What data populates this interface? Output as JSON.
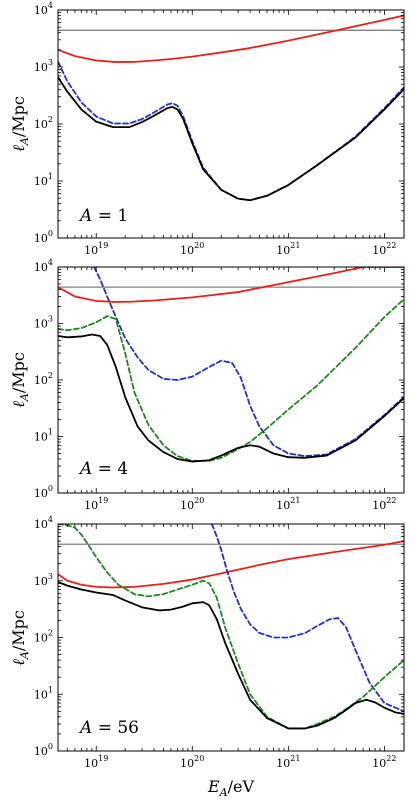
{
  "chart_data": [
    {
      "type": "line",
      "panel_label": "A = 1",
      "panel_label_parts": [
        "A",
        "= 1"
      ],
      "xscale": "log",
      "yscale": "log",
      "xlim": [
        4e+18,
        1.6e+22
      ],
      "ylim": [
        1,
        10000
      ],
      "xticks": [
        "10^19",
        "10^20",
        "10^21",
        "10^22"
      ],
      "yticks": [
        "10^0",
        "10^1",
        "10^2",
        "10^3",
        "10^4"
      ],
      "ylabel": "ℓ_A/Mpc",
      "series": [
        {
          "color": "#808080",
          "style": "solid",
          "x": [
            4e+18,
            1.6e+22
          ],
          "y": [
            4400,
            4400
          ]
        },
        {
          "color": "#e8211d",
          "style": "solid",
          "x": [
            4e+18,
            6e+18,
            1e+19,
            1.6e+19,
            2.5e+19,
            4e+19,
            6e+19,
            1e+20,
            2e+20,
            4e+20,
            1e+21,
            3e+21,
            1e+22,
            1.6e+22
          ],
          "y": [
            2000,
            1550,
            1300,
            1220,
            1230,
            1300,
            1380,
            1520,
            1800,
            2150,
            2900,
            4300,
            6700,
            8000
          ]
        },
        {
          "color": "#1f2fd1",
          "style": "dashed",
          "x": [
            4e+18,
            5e+18,
            7e+18,
            1e+19,
            1.5e+19,
            2.2e+19,
            3e+19,
            4e+19,
            5.5e+19,
            6.2e+19,
            7e+19,
            8e+19,
            1e+20,
            1.3e+20,
            2e+20,
            3e+20,
            4e+20,
            6e+20,
            1e+21,
            2e+21,
            5e+21,
            1e+22,
            1.6e+22
          ],
          "y": [
            1250,
            560,
            240,
            135,
            102,
            102,
            122,
            160,
            220,
            232,
            210,
            140,
            50,
            17,
            7,
            4.9,
            4.6,
            5.5,
            8.5,
            19,
            60,
            190,
            440
          ]
        },
        {
          "color": "#000000",
          "style": "solid",
          "x": [
            4e+18,
            5e+18,
            7e+18,
            1e+19,
            1.5e+19,
            2.2e+19,
            3e+19,
            4e+19,
            5.5e+19,
            6.2e+19,
            7e+19,
            8e+19,
            1e+20,
            1.3e+20,
            2e+20,
            3e+20,
            4e+20,
            6e+20,
            1e+21,
            2e+21,
            5e+21,
            1e+22,
            1.6e+22
          ],
          "y": [
            660,
            370,
            180,
            110,
            88,
            88,
            108,
            140,
            190,
            200,
            180,
            125,
            46,
            16,
            7,
            4.9,
            4.6,
            5.5,
            8.5,
            19,
            58,
            180,
            410
          ]
        }
      ]
    },
    {
      "type": "line",
      "panel_label": "A = 4",
      "panel_label_parts": [
        "A",
        "= 4"
      ],
      "xscale": "log",
      "yscale": "log",
      "xlim": [
        4e+18,
        1.6e+22
      ],
      "ylim": [
        1,
        10000
      ],
      "xticks": [
        "10^19",
        "10^20",
        "10^21",
        "10^22"
      ],
      "yticks": [
        "10^0",
        "10^1",
        "10^2",
        "10^3",
        "10^4"
      ],
      "ylabel": "ℓ_A/Mpc",
      "series": [
        {
          "color": "#808080",
          "style": "solid",
          "x": [
            4e+18,
            1.6e+22
          ],
          "y": [
            4400,
            4400
          ]
        },
        {
          "color": "#e8211d",
          "style": "solid",
          "x": [
            4e+18,
            6e+18,
            1e+19,
            1.6e+19,
            2.5e+19,
            4e+19,
            1e+20,
            3e+20,
            1e+21,
            3e+21,
            6e+21,
            1.6e+22
          ],
          "y": [
            4400,
            3000,
            2500,
            2400,
            2450,
            2550,
            2900,
            3600,
            5400,
            7800,
            10000,
            10000
          ]
        },
        {
          "color": "#1f2fd1",
          "style": "dashed",
          "x": [
            9.5e+18,
            1.1e+19,
            1.3e+19,
            1.6e+19,
            2e+19,
            2.7e+19,
            3.5e+19,
            5e+19,
            7e+19,
            1e+20,
            1.5e+20,
            2e+20,
            2.6e+20,
            3.2e+20,
            4e+20,
            5e+20,
            7e+20,
            1e+21,
            1.5e+21,
            2.5e+21,
            5e+21,
            1e+22,
            1.6e+22
          ],
          "y": [
            10000,
            6000,
            3000,
            1300,
            550,
            250,
            150,
            105,
            100,
            115,
            170,
            220,
            200,
            110,
            35,
            15,
            7,
            5,
            4.5,
            4.8,
            9,
            24,
            50
          ]
        },
        {
          "color": "#1a8a1a",
          "style": "dashed",
          "x": [
            4e+18,
            5e+18,
            7e+18,
            1e+19,
            1.3e+19,
            1.6e+19,
            2e+19,
            2.5e+19,
            3.5e+19,
            5e+19,
            7e+19,
            1e+20,
            1.5e+20,
            2e+20,
            3e+20,
            4e+20,
            6e+20,
            1e+21,
            2e+21,
            5e+21,
            1e+22,
            1.6e+22
          ],
          "y": [
            800,
            760,
            830,
            1050,
            1350,
            1200,
            300,
            60,
            16,
            7,
            4.5,
            3.7,
            3.7,
            4.2,
            6,
            8,
            14,
            30,
            80,
            370,
            1300,
            2700
          ]
        },
        {
          "color": "#000000",
          "style": "solid",
          "x": [
            4e+18,
            5e+18,
            7e+18,
            9e+18,
            1.1e+19,
            1.3e+19,
            1.6e+19,
            2e+19,
            2.7e+19,
            3.5e+19,
            5e+19,
            7e+19,
            1e+20,
            1.5e+20,
            2e+20,
            3e+20,
            4e+20,
            5e+20,
            7e+20,
            1e+21,
            1.5e+21,
            2.5e+21,
            5e+21,
            1e+22,
            1.6e+22
          ],
          "y": [
            600,
            570,
            590,
            640,
            600,
            420,
            170,
            50,
            15,
            8.5,
            5.3,
            4,
            3.6,
            3.8,
            4.6,
            6.3,
            7,
            6.6,
            5,
            4.3,
            4.2,
            4.6,
            8.5,
            23,
            48
          ]
        }
      ]
    },
    {
      "type": "line",
      "panel_label": "A = 56",
      "panel_label_parts": [
        "A",
        "= 56"
      ],
      "xscale": "log",
      "yscale": "log",
      "xlim": [
        4e+18,
        1.6e+22
      ],
      "ylim": [
        1,
        10000
      ],
      "xticks": [
        "10^19",
        "10^20",
        "10^21",
        "10^22"
      ],
      "yticks": [
        "10^0",
        "10^1",
        "10^2",
        "10^3",
        "10^4"
      ],
      "ylabel": "ℓ_A/Mpc",
      "xlabel": "E_A/eV",
      "series": [
        {
          "color": "#808080",
          "style": "solid",
          "x": [
            4e+18,
            1.6e+22
          ],
          "y": [
            4400,
            4400
          ]
        },
        {
          "color": "#e8211d",
          "style": "solid",
          "x": [
            4e+18,
            5e+18,
            7e+18,
            1e+19,
            1.5e+19,
            2.5e+19,
            5e+19,
            1e+20,
            2e+20,
            5e+20,
            1e+21,
            3e+21,
            1e+22,
            1.6e+22
          ],
          "y": [
            1300,
            1000,
            850,
            780,
            760,
            780,
            880,
            1050,
            1350,
            1900,
            2400,
            3200,
            4300,
            5000
          ]
        },
        {
          "color": "#1f2fd1",
          "style": "dashed",
          "x": [
            1.6e+20,
            1.8e+20,
            2e+20,
            2.3e+20,
            2.7e+20,
            3.2e+20,
            4e+20,
            5e+20,
            7e+20,
            1e+21,
            1.5e+21,
            2e+21,
            2.7e+21,
            3.3e+21,
            4e+21,
            5e+21,
            7e+21,
            1e+22,
            1.6e+22
          ],
          "y": [
            10000,
            6000,
            3500,
            1500,
            650,
            320,
            170,
            120,
            100,
            100,
            120,
            160,
            210,
            220,
            150,
            60,
            16,
            7,
            5
          ]
        },
        {
          "color": "#1a8a1a",
          "style": "dashed",
          "x": [
            4e+18,
            5e+18,
            6e+18,
            7e+18,
            8.5e+18,
            1e+19,
            1.3e+19,
            1.7e+19,
            2.5e+19,
            3.5e+19,
            5e+19,
            7e+19,
            1e+20,
            1.3e+20,
            1.5e+20,
            1.8e+20,
            2.2e+20,
            3e+20,
            4e+20,
            6e+20,
            1e+21,
            1.5e+21,
            2e+21,
            3e+21,
            4e+21,
            6e+21,
            1e+22,
            1.6e+22
          ],
          "y": [
            10000,
            9500,
            8600,
            6500,
            4000,
            2600,
            1400,
            850,
            580,
            530,
            580,
            700,
            850,
            1000,
            900,
            500,
            150,
            35,
            10,
            4,
            2.5,
            2.5,
            3,
            4,
            5.5,
            9,
            20,
            40
          ]
        },
        {
          "color": "#000000",
          "style": "solid",
          "x": [
            4e+18,
            5e+18,
            7e+18,
            1e+19,
            1.5e+19,
            2e+19,
            3e+19,
            4.5e+19,
            6e+19,
            8e+19,
            1e+20,
            1.3e+20,
            1.5e+20,
            1.8e+20,
            2.2e+20,
            3e+20,
            4e+20,
            6e+20,
            1e+21,
            1.5e+21,
            2e+21,
            3e+21,
            4e+21,
            5e+21,
            6.5e+21,
            8e+21,
            1e+22,
            1.3e+22,
            1.6e+22
          ],
          "y": [
            950,
            820,
            700,
            620,
            560,
            450,
            340,
            300,
            310,
            350,
            400,
            420,
            370,
            210,
            80,
            23,
            8,
            3.8,
            2.5,
            2.5,
            2.8,
            3.8,
            5.3,
            7,
            8,
            7.2,
            5.8,
            4.8,
            4.5
          ]
        }
      ]
    }
  ]
}
